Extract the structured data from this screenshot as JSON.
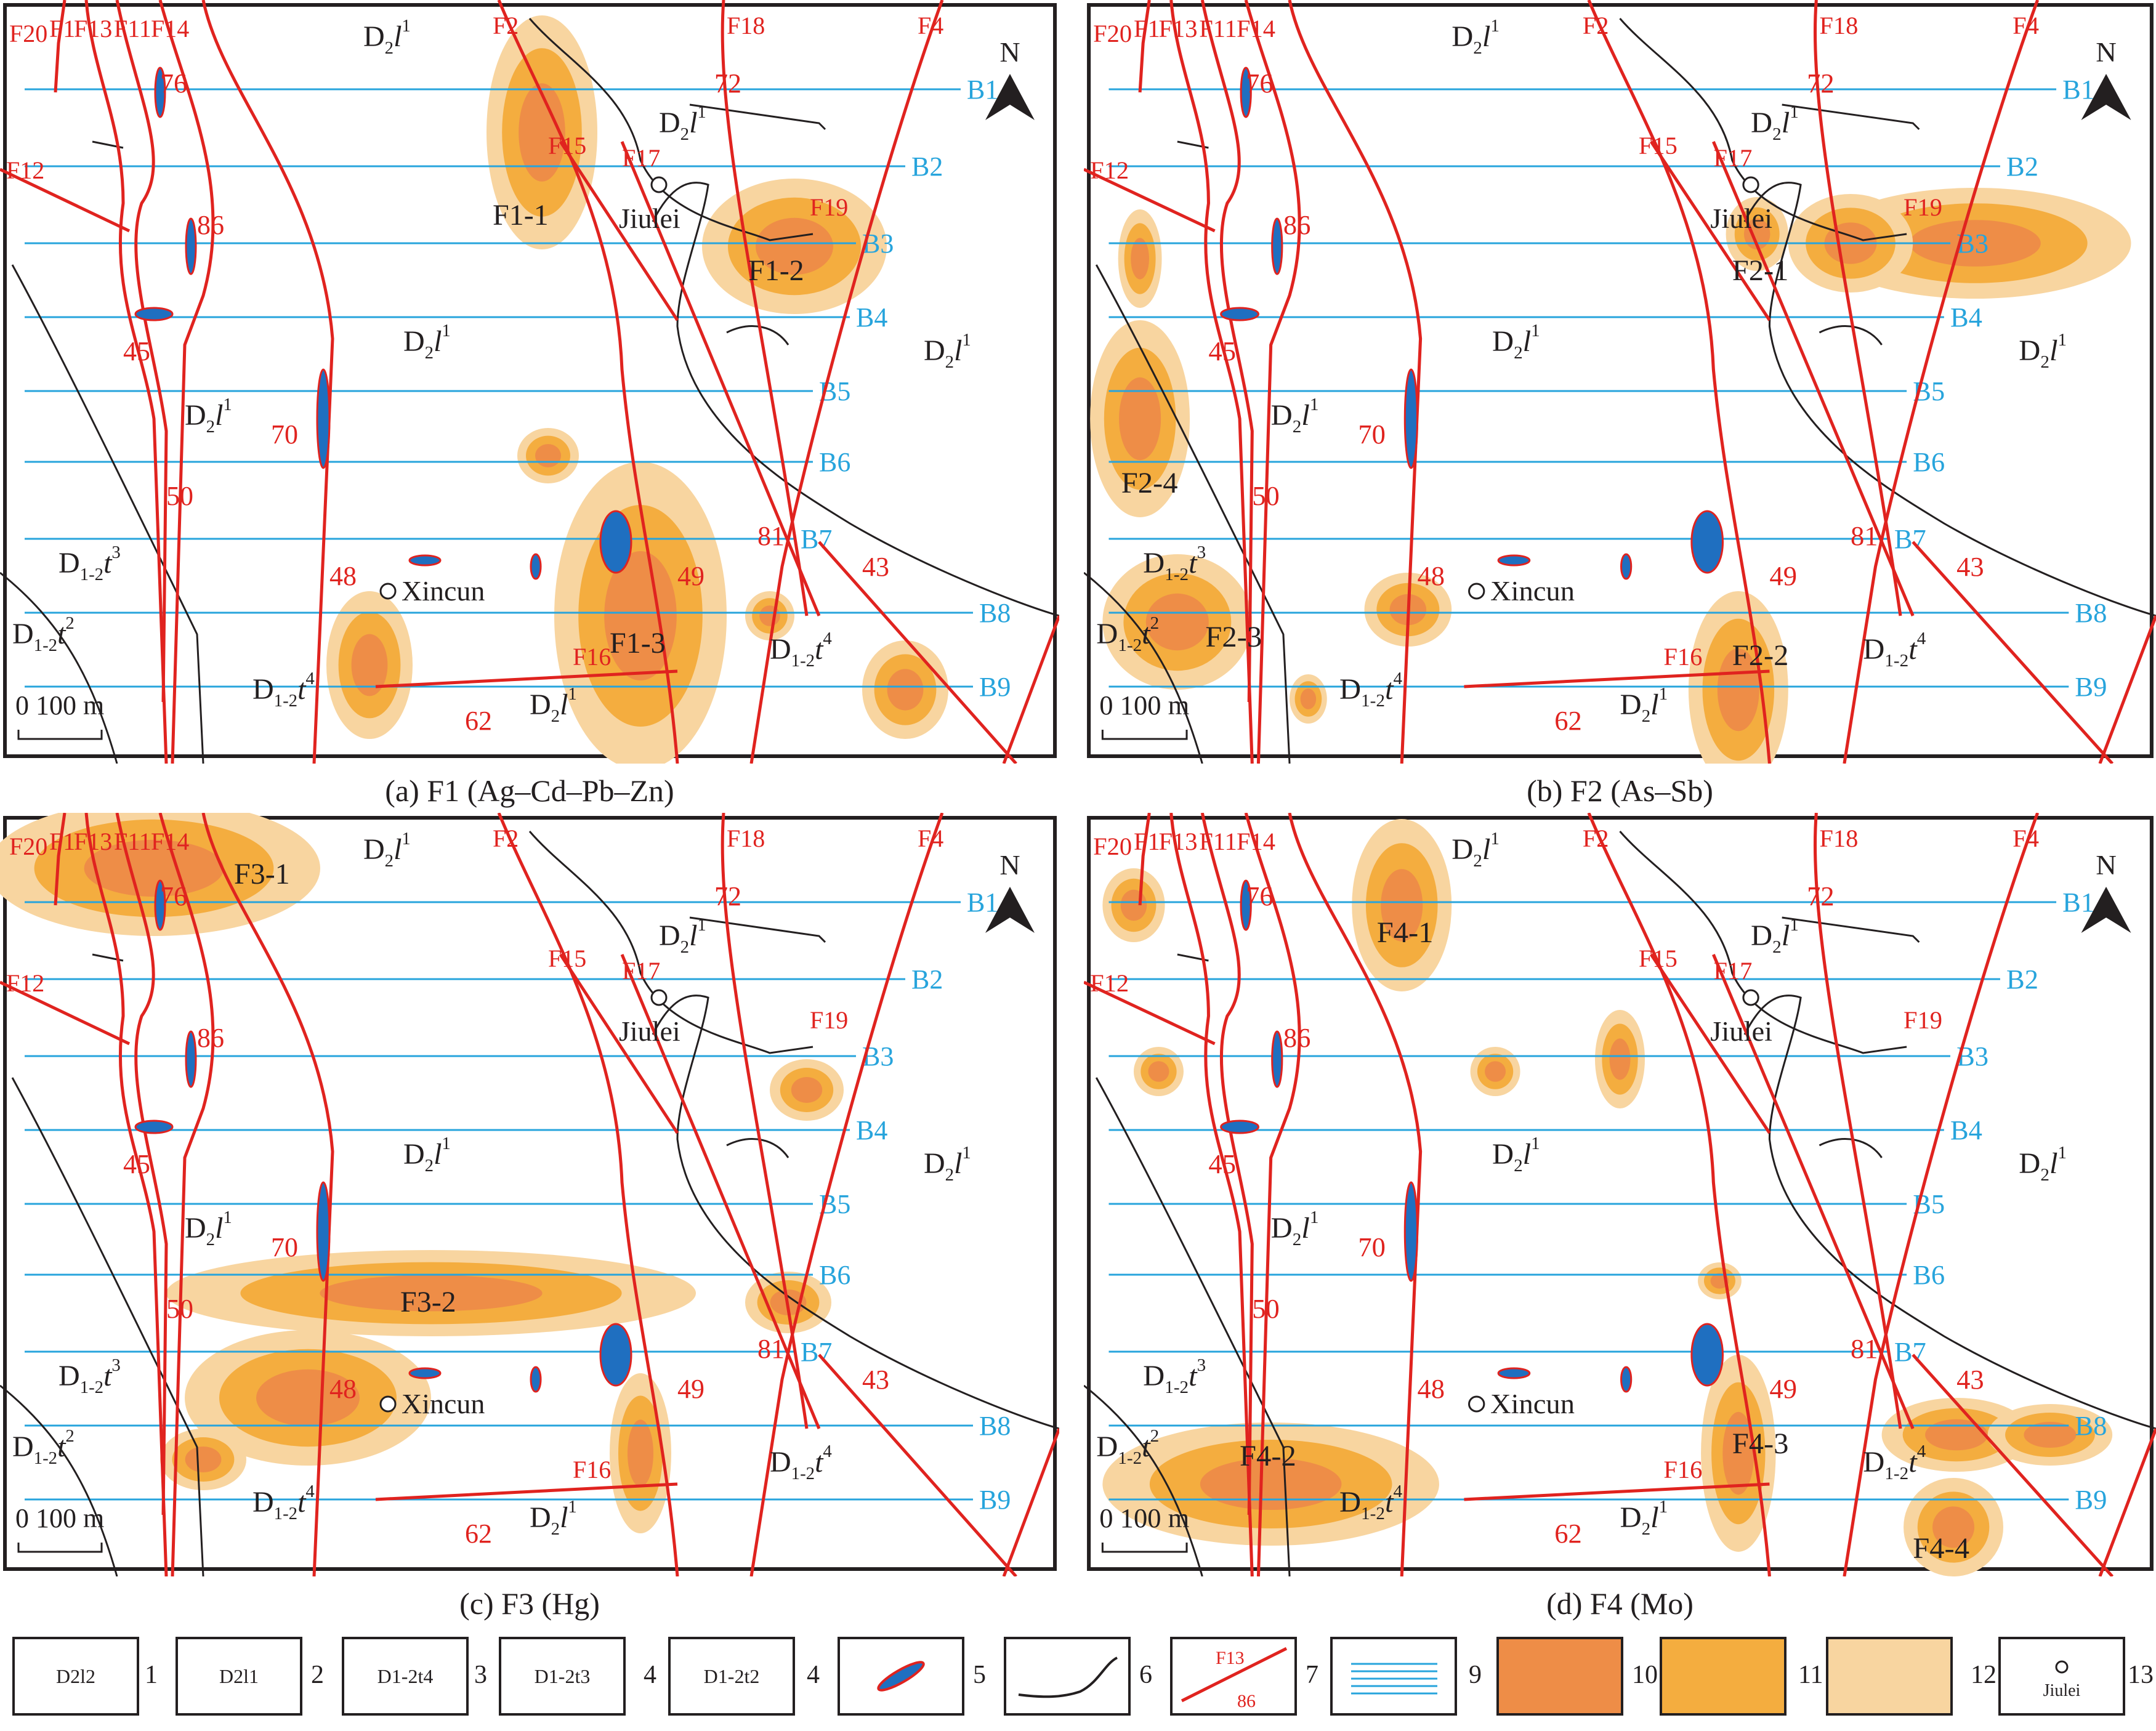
{
  "panels": [
    {
      "key": "a",
      "caption": "(a) F1 (Ag–Cd–Pb–Zn)",
      "anomaly_labels": [
        "F1-1",
        "F1-2",
        "F1-3"
      ]
    },
    {
      "key": "b",
      "caption": "(b) F2 (As–Sb)",
      "anomaly_labels": [
        "F2-1",
        "F2-2",
        "F2-3",
        "F2-4"
      ]
    },
    {
      "key": "c",
      "caption": "(c) F3 (Hg)",
      "anomaly_labels": [
        "F3-1",
        "F3-2"
      ]
    },
    {
      "key": "d",
      "caption": "(d) F4 (Mo)",
      "anomaly_labels": [
        "F4-1",
        "F4-2",
        "F4-3",
        "F4-4"
      ]
    }
  ],
  "lines": [
    "B1",
    "B2",
    "B3",
    "B4",
    "B5",
    "B6",
    "B7",
    "B8",
    "B9"
  ],
  "faults": [
    "F20",
    "F1",
    "F13",
    "F11",
    "F14",
    "F2",
    "F18",
    "F4",
    "F12",
    "F15",
    "F17",
    "F19",
    "F16"
  ],
  "dips": [
    "76",
    "72",
    "86",
    "45",
    "43",
    "70",
    "50",
    "81",
    "48",
    "49",
    "43",
    "62"
  ],
  "places": {
    "jiulei": "Jiulei",
    "xincun": "Xincun"
  },
  "north": "N",
  "scale": "0  100 m",
  "units": {
    "d2l1": "D2l1",
    "d12t2": "D1-2t2",
    "d12t3": "D1-2t3",
    "d12t4": "D1-2t4"
  },
  "legend": [
    {
      "num": "1",
      "label": "D2l2"
    },
    {
      "num": "2",
      "label": "D2l1"
    },
    {
      "num": "3",
      "label": "D1-2t4"
    },
    {
      "num": "4",
      "label": "D1-2t3"
    },
    {
      "num": "4",
      "label": "D1-2t2"
    },
    {
      "num": "5",
      "label": "orebody"
    },
    {
      "num": "6",
      "label": "boundary"
    },
    {
      "num": "7",
      "label": "F13 86"
    },
    {
      "num": "9",
      "label": "survey lines"
    },
    {
      "num": "10",
      "label": ""
    },
    {
      "num": "11",
      "label": ""
    },
    {
      "num": "12",
      "label": ""
    },
    {
      "num": "13",
      "label": "Jiulei"
    }
  ],
  "colors": {
    "fault": "#e0231f",
    "line": "#27a4dc",
    "line_label": "#27a4dc",
    "ore": "#1f6fc0",
    "strong": "#ee8d47",
    "medium": "#f4ad3f",
    "weak": "#f8d5a0",
    "boundary": "#231f20"
  }
}
